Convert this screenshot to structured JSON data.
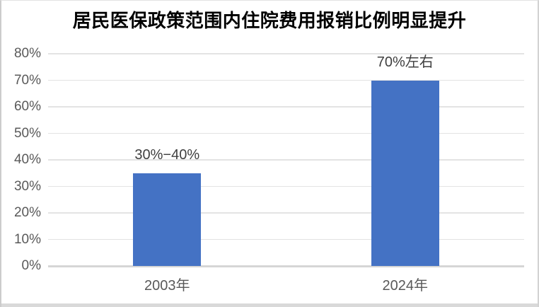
{
  "chart_data": {
    "type": "bar",
    "title": "居民医保政策范围内住院费用报销比例明显提升",
    "categories": [
      "2003年",
      "2024年"
    ],
    "values": [
      35,
      70
    ],
    "value_labels": [
      "30%−40%",
      "70%左右"
    ],
    "ylim": [
      0,
      80
    ],
    "ytick_interval": 10,
    "ytick_labels": [
      "0%",
      "10%",
      "20%",
      "30%",
      "40%",
      "50%",
      "60%",
      "70%",
      "80%"
    ],
    "grid": "horizontal",
    "legend": "none",
    "bar_color": "#4472C4",
    "axis_label_color": "#595959",
    "data_label_color": "#3F3F3F",
    "title_color": "#000000",
    "gridline_color": "#E3E3E3",
    "axis_line_color": "#D6D6D6",
    "background_color": "#FFFFFF"
  }
}
